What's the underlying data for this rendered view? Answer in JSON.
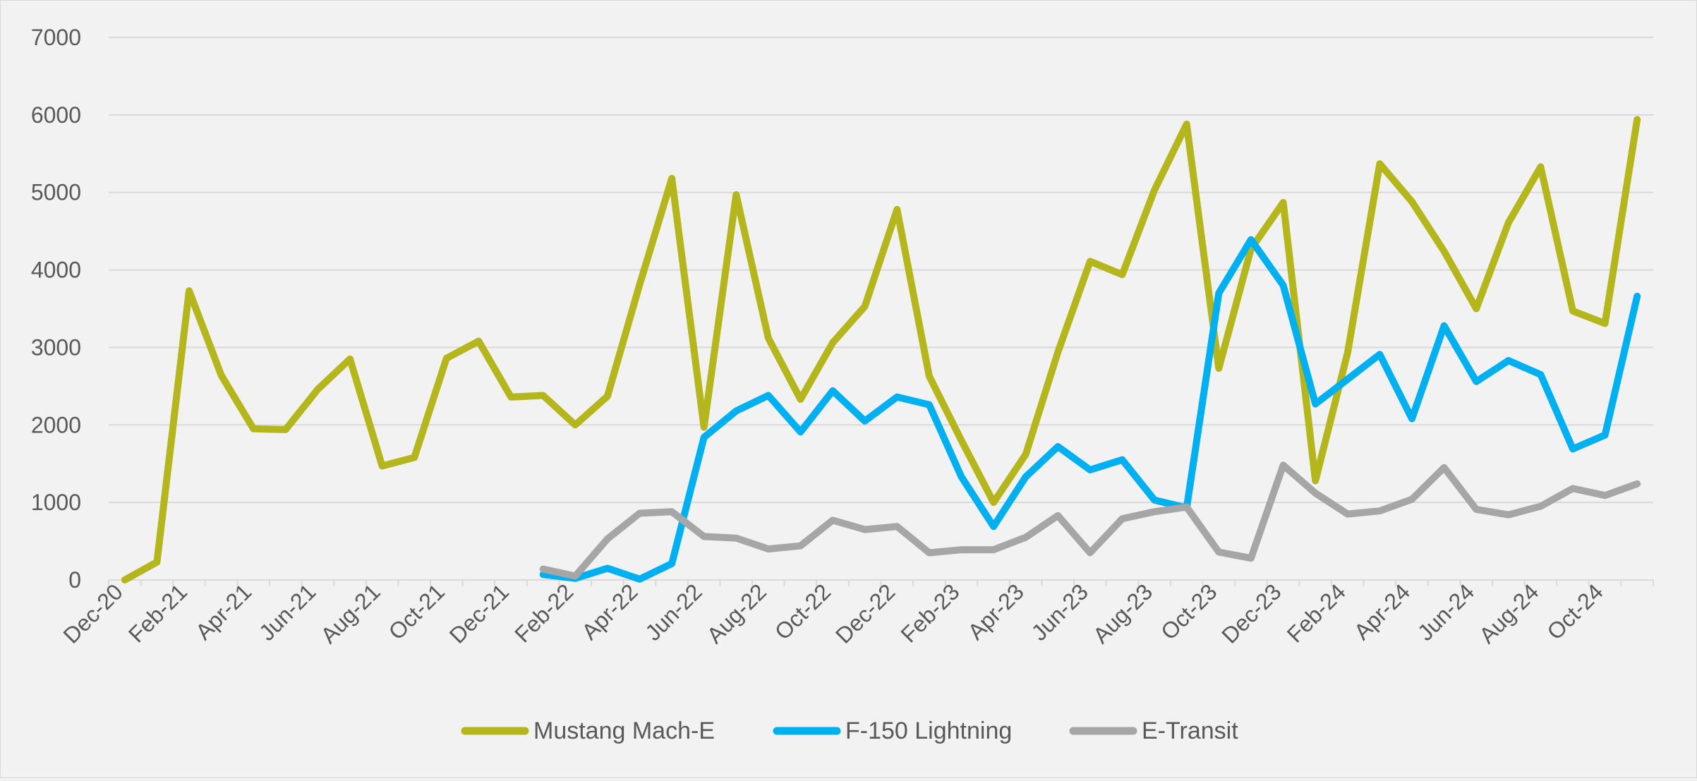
{
  "chart_data": {
    "type": "line",
    "title": "",
    "xlabel": "",
    "ylabel": "",
    "ylim": [
      0,
      7000
    ],
    "yticks": [
      0,
      1000,
      2000,
      3000,
      4000,
      5000,
      6000,
      7000
    ],
    "grid": true,
    "legend_position": "bottom",
    "x": [
      "Dec-20",
      "Jan-21",
      "Feb-21",
      "Mar-21",
      "Apr-21",
      "May-21",
      "Jun-21",
      "Jul-21",
      "Aug-21",
      "Sep-21",
      "Oct-21",
      "Nov-21",
      "Dec-21",
      "Jan-22",
      "Feb-22",
      "Mar-22",
      "Apr-22",
      "May-22",
      "Jun-22",
      "Jul-22",
      "Aug-22",
      "Sep-22",
      "Oct-22",
      "Nov-22",
      "Dec-22",
      "Jan-23",
      "Feb-23",
      "Mar-23",
      "Apr-23",
      "May-23",
      "Jun-23",
      "Jul-23",
      "Aug-23",
      "Sep-23",
      "Oct-23",
      "Nov-23",
      "Dec-23",
      "Jan-24",
      "Feb-24",
      "Mar-24",
      "Apr-24",
      "May-24",
      "Jun-24",
      "Jul-24",
      "Aug-24",
      "Sep-24",
      "Oct-24",
      "Nov-24"
    ],
    "x_tick_labels": [
      "Dec-20",
      "Feb-21",
      "Apr-21",
      "Jun-21",
      "Aug-21",
      "Oct-21",
      "Dec-21",
      "Feb-22",
      "Apr-22",
      "Jun-22",
      "Aug-22",
      "Oct-22",
      "Dec-22",
      "Feb-23",
      "Apr-23",
      "Jun-23",
      "Aug-23",
      "Oct-23",
      "Dec-23",
      "Feb-24",
      "Apr-24",
      "Jun-24",
      "Aug-24",
      "Oct-24"
    ],
    "series": [
      {
        "name": "Mustang Mach-E",
        "color": "#b5b51c",
        "values": [
          0,
          230,
          3730,
          2640,
          1950,
          1940,
          2460,
          2850,
          1470,
          1580,
          2860,
          3080,
          2360,
          2380,
          2000,
          2370,
          3810,
          5180,
          1970,
          4970,
          3120,
          2330,
          3060,
          3530,
          4780,
          2630,
          1800,
          1000,
          1620,
          2940,
          4110,
          3940,
          5030,
          5880,
          2730,
          4270,
          4870,
          1280,
          2930,
          5370,
          4880,
          4240,
          3500,
          4610,
          5330,
          3470,
          3310,
          5940
        ]
      },
      {
        "name": "F-150 Lightning",
        "color": "#00b0f0",
        "values": [
          null,
          null,
          null,
          null,
          null,
          null,
          null,
          null,
          null,
          null,
          null,
          null,
          null,
          70,
          20,
          150,
          10,
          210,
          1840,
          2180,
          2380,
          1910,
          2440,
          2050,
          2360,
          2260,
          1330,
          690,
          1330,
          1720,
          1420,
          1550,
          1030,
          930,
          3700,
          4390,
          3800,
          2270,
          2590,
          2910,
          2080,
          3280,
          2560,
          2830,
          2650,
          1690,
          1870,
          3660
        ]
      },
      {
        "name": "E-Transit",
        "color": "#a6a6a6",
        "values": [
          null,
          null,
          null,
          null,
          null,
          null,
          null,
          null,
          null,
          null,
          null,
          null,
          null,
          140,
          50,
          530,
          860,
          880,
          560,
          540,
          400,
          440,
          770,
          650,
          690,
          350,
          390,
          390,
          550,
          830,
          350,
          790,
          880,
          940,
          360,
          280,
          1480,
          1120,
          850,
          890,
          1040,
          1450,
          910,
          840,
          950,
          1180,
          1090,
          1240
        ]
      }
    ]
  }
}
